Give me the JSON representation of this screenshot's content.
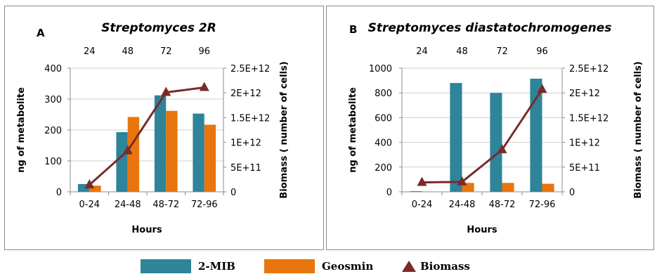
{
  "colors": {
    "mib": "#2e8499",
    "geosmin": "#e8750d",
    "biomass": "#7a2a2a",
    "axis": "#8c8c8c",
    "grid": "#d0d0d0"
  },
  "legend": [
    {
      "label": "2-MIB",
      "kind": "bar",
      "color": "#2e8499"
    },
    {
      "label": "Geosmin",
      "kind": "bar",
      "color": "#e8750d"
    },
    {
      "label": "Biomass",
      "kind": "marker",
      "color": "#7a2a2a"
    }
  ],
  "chart_data": [
    {
      "type": "bar",
      "panel_letter": "A",
      "title": "Streptomyces 2R",
      "categories": [
        "0-24",
        "24-48",
        "48-72",
        "72-96"
      ],
      "top_ticks": [
        "24",
        "48",
        "72",
        "96"
      ],
      "xlabel": "Hours",
      "ylabel": "ng of metabolite",
      "ylabel_right": "Biomass ( number of cells)",
      "ylim": [
        0,
        400
      ],
      "yticks": [
        "0",
        "100",
        "200",
        "300",
        "400"
      ],
      "y2lim": [
        0,
        2500000000000
      ],
      "y2ticks": [
        "0",
        "5E+11",
        "1E+12",
        "1.5E+12",
        "2E+12",
        "2.5E+12"
      ],
      "series": [
        {
          "name": "2-MIB",
          "type": "bar",
          "values": [
            25,
            193,
            312,
            253
          ]
        },
        {
          "name": "Geosmin",
          "type": "bar",
          "values": [
            20,
            242,
            262,
            217
          ]
        },
        {
          "name": "Biomass",
          "type": "line",
          "axis": "right",
          "values": [
            140000000000,
            830000000000,
            2010000000000,
            2110000000000
          ]
        }
      ],
      "grid": "horizontal"
    },
    {
      "type": "bar",
      "panel_letter": "B",
      "title": "Streptomyces diastatochromogenes",
      "categories": [
        "0-24",
        "24-48",
        "48-72",
        "72-96"
      ],
      "top_ticks": [
        "24",
        "48",
        "72",
        "96"
      ],
      "xlabel": "Hours",
      "ylabel": "ng of metabolite",
      "ylabel_right": "Biomass ( number of cells)",
      "ylim": [
        0,
        1000
      ],
      "yticks": [
        "0",
        "200",
        "400",
        "600",
        "800",
        "1000"
      ],
      "y2lim": [
        0,
        2500000000000
      ],
      "y2ticks": [
        "0",
        "5E+11",
        "1E+12",
        "1.5E+12",
        "2E+12",
        "2.5E+12"
      ],
      "series": [
        {
          "name": "2-MIB",
          "type": "bar",
          "values": [
            5,
            880,
            800,
            915
          ]
        },
        {
          "name": "Geosmin",
          "type": "bar",
          "values": [
            3,
            72,
            72,
            65
          ]
        },
        {
          "name": "Biomass",
          "type": "line",
          "axis": "right",
          "values": [
            190000000000,
            200000000000,
            850000000000,
            2070000000000
          ]
        }
      ],
      "grid": "horizontal"
    }
  ]
}
